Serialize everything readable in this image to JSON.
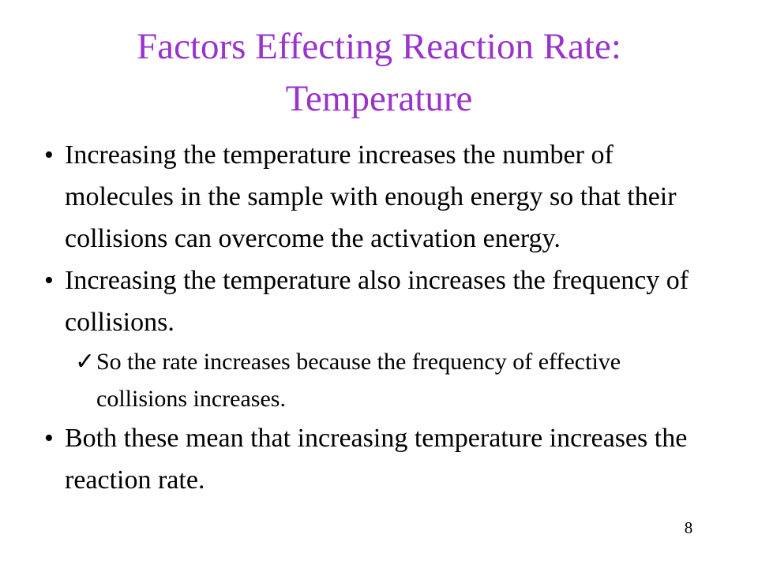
{
  "slide": {
    "background_color": "#ffffff",
    "text_color": "#000000",
    "title": {
      "color": "#9933cc",
      "line1": "Factors Effecting Reaction Rate:",
      "line2": "Temperature"
    },
    "bullets": [
      {
        "level": 1,
        "marker": "•",
        "text": "Increasing the temperature increases the number of molecules in the sample with enough energy so that their collisions can overcome the activation energy."
      },
      {
        "level": 1,
        "marker": "•",
        "text": "Increasing the temperature also increases the frequency of collisions."
      },
      {
        "level": 2,
        "marker": "✓",
        "text": "So the rate increases because the frequency of effective collisions increases."
      },
      {
        "level": 1,
        "marker": "•",
        "text": "Both these mean that increasing temperature increases the reaction rate."
      }
    ],
    "page_number": "8"
  }
}
